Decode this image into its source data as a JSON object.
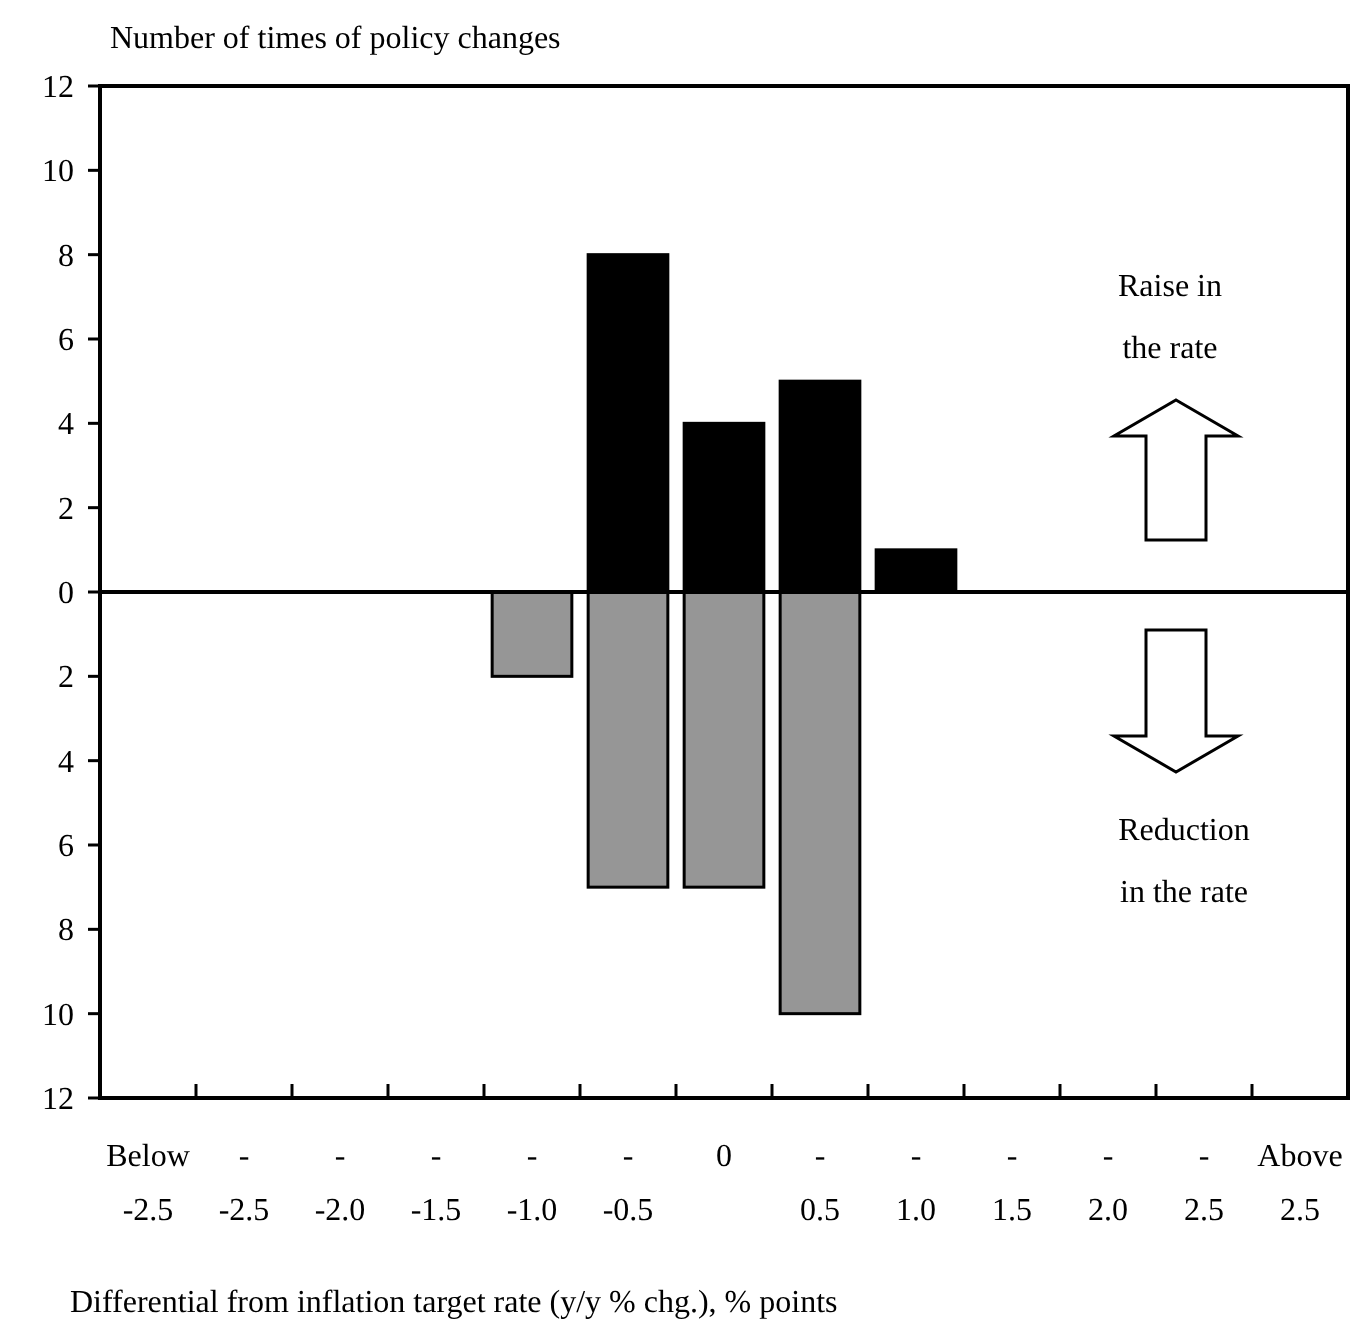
{
  "chart_data": {
    "type": "bar",
    "title": "Number of times of policy changes",
    "xlabel": "Differential from inflation target rate (y/y % chg.), % points",
    "categories": [
      "Below\n-2.5",
      "-\n-2.5",
      "-\n-2.0",
      "-\n-1.5",
      "-\n-1.0",
      "-\n-0.5",
      "0",
      "-\n0.5",
      "-\n1.0",
      "-\n1.5",
      "-\n2.0",
      "-\n2.5",
      "Above\n2.5"
    ],
    "series": [
      {
        "color": "#000000",
        "values": [
          0,
          0,
          0,
          0,
          0,
          8,
          4,
          5,
          1,
          0,
          0,
          0,
          0
        ]
      },
      {
        "color": "#969696",
        "values": [
          0,
          0,
          0,
          0,
          -2,
          -7,
          -7,
          -10,
          0,
          0,
          0,
          0,
          0
        ]
      }
    ],
    "ylim": [
      -12,
      12
    ],
    "yticks": [
      {
        "value": -12,
        "label": "12"
      },
      {
        "value": -10,
        "label": "10"
      },
      {
        "value": -8,
        "label": "8"
      },
      {
        "value": -6,
        "label": "6"
      },
      {
        "value": -4,
        "label": "4"
      },
      {
        "value": -2,
        "label": "2"
      },
      0,
      2,
      4,
      6,
      8,
      10,
      12
    ],
    "annotations": [
      "Raise in\nthe rate",
      "Reduction\nin the rate"
    ]
  }
}
